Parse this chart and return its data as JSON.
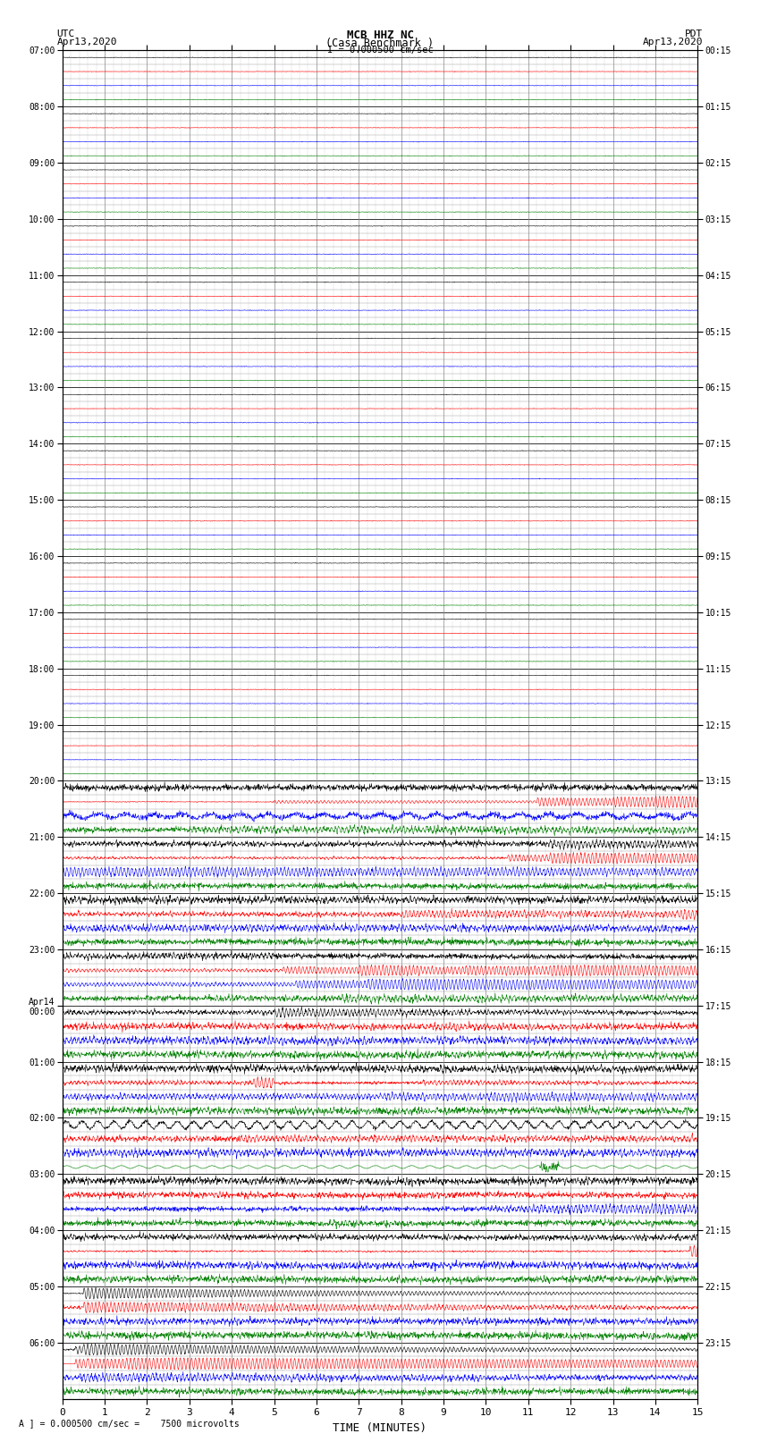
{
  "title_line1": "MCB HHZ NC",
  "title_line2": "(Casa Benchmark )",
  "title_line3": "I = 0.000500 cm/sec",
  "left_label1": "UTC",
  "left_label2": "Apr13,2020",
  "right_label1": "PDT",
  "right_label2": "Apr13,2020",
  "xlabel": "TIME (MINUTES)",
  "footer": "A ] = 0.000500 cm/sec =    7500 microvolts",
  "utc_hour_labels": [
    "07:00",
    "08:00",
    "09:00",
    "10:00",
    "11:00",
    "12:00",
    "13:00",
    "14:00",
    "15:00",
    "16:00",
    "17:00",
    "18:00",
    "19:00",
    "20:00",
    "21:00",
    "22:00",
    "23:00",
    "Apr14\n00:00",
    "01:00",
    "02:00",
    "03:00",
    "04:00",
    "05:00",
    "06:00"
  ],
  "pdt_hour_labels": [
    "00:15",
    "01:15",
    "02:15",
    "03:15",
    "04:15",
    "05:15",
    "06:15",
    "07:15",
    "08:15",
    "09:15",
    "10:15",
    "11:15",
    "12:15",
    "13:15",
    "14:15",
    "15:15",
    "16:15",
    "17:15",
    "18:15",
    "19:15",
    "20:15",
    "21:15",
    "22:15",
    "23:15"
  ],
  "n_hours": 24,
  "traces_per_hour": 4,
  "n_minutes": 15,
  "trace_colors_per_hour": [
    "black",
    "red",
    "blue",
    "green"
  ],
  "quiet_hours": 13,
  "background_color": "#ffffff",
  "major_grid_color": "#333333",
  "minor_grid_color": "#999999",
  "vert_grid_color": "#888888"
}
